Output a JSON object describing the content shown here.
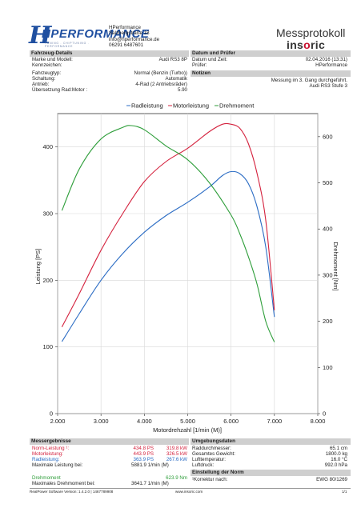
{
  "header": {
    "logo_text": "HPERFORMANCE",
    "logo_tagline": "TUNING . CHIPTUNING . PERFORMANCE",
    "company_lines": [
      "HPerformance",
      "Salzbergstraße 18",
      "info@hperformance.de",
      "06291 6487601"
    ],
    "title": "Messprotokoll",
    "brand": "insoric"
  },
  "vehicle": {
    "heading": "Fahrzeug-Details",
    "rows": [
      {
        "label": "Marke und Modell:",
        "value": "Audi RS3 8P"
      },
      {
        "label": "Kennzeichen:",
        "value": ""
      },
      {
        "label": "Fahrzeugtyp:",
        "value": "Normal (Benzin (Turbo))"
      },
      {
        "label": "Schaltung:",
        "value": "Automatik"
      },
      {
        "label": "Antrieb:",
        "value": "4-Rad (2 Antriebsräder)"
      },
      {
        "label": "Übersetzung Rad:Motor :",
        "value": "5.90"
      }
    ]
  },
  "test": {
    "heading": "Datum und Prüfer",
    "rows": [
      {
        "label": "Datum und Zeit:",
        "value": "02.04.2016 (13:31)"
      },
      {
        "label": "Prüfer:",
        "value": "HPerformance"
      }
    ],
    "notes_heading": "Notizen",
    "notes": [
      "Messung im 3. Gang durchgeführt.",
      "Audi RS3 Stufe 3"
    ]
  },
  "chart_data": {
    "type": "line",
    "title": "",
    "legend": [
      "Radleistung",
      "Motorleistung",
      "Drehmoment"
    ],
    "xlabel": "Motordrehzahl [1/min (M)]",
    "ylabel": "Leistung [PS]",
    "y2label": "Drehmoment [Nm]",
    "xlim": [
      2000,
      8000
    ],
    "ylim": [
      0,
      450
    ],
    "y2lim": [
      0,
      650
    ],
    "xticks": [
      "2.000",
      "3.000",
      "4.000",
      "5.000",
      "6.000",
      "7.000",
      "8.000"
    ],
    "yticks": [
      "0",
      "100",
      "200",
      "300",
      "400"
    ],
    "y2ticks": [
      "0",
      "100",
      "200",
      "300",
      "400",
      "500",
      "600"
    ],
    "series": [
      {
        "name": "Radleistung",
        "axis": "left",
        "color": "#2b6cc4",
        "x": [
          2100,
          2500,
          3000,
          3500,
          4000,
          4500,
          5000,
          5500,
          5800,
          6000,
          6200,
          6400,
          6600,
          6800,
          7000
        ],
        "y": [
          108,
          150,
          200,
          240,
          272,
          297,
          317,
          340,
          357,
          363,
          360,
          345,
          310,
          250,
          145
        ]
      },
      {
        "name": "Motorleistung",
        "axis": "left",
        "color": "#d4213d",
        "x": [
          2100,
          2500,
          3000,
          3500,
          4000,
          4500,
          5000,
          5500,
          5800,
          6000,
          6200,
          6400,
          6600,
          6800,
          7000
        ],
        "y": [
          130,
          180,
          245,
          300,
          348,
          378,
          398,
          423,
          434,
          434,
          428,
          405,
          360,
          290,
          155
        ]
      },
      {
        "name": "Drehmoment",
        "axis": "right",
        "color": "#2e9e3a",
        "x": [
          2100,
          2500,
          3000,
          3500,
          3700,
          4000,
          4500,
          5000,
          5500,
          6000,
          6200,
          6400,
          6600,
          6800,
          7000
        ],
        "y": [
          440,
          530,
          595,
          620,
          624,
          615,
          580,
          550,
          500,
          430,
          390,
          340,
          280,
          200,
          155
        ]
      }
    ]
  },
  "results": {
    "heading": "Messergebnisse",
    "rows": [
      {
        "label": "Norm-Leistung ¹:",
        "ps": "434.8 PS",
        "kw": "319.8 kW",
        "color": "#d4213d"
      },
      {
        "label": "Motorleistung:",
        "ps": "443.9 PS",
        "kw": "326.5 kW",
        "color": "#d4213d"
      },
      {
        "label": "Radleistung:",
        "ps": "363.9 PS",
        "kw": "267.6 kW",
        "color": "#2b6cc4"
      },
      {
        "label": "Maximale Leistung bei:",
        "ps": "5881.9 1/min (M)",
        "kw": "",
        "color": "#222222"
      }
    ],
    "torque_label": "Drehmoment",
    "torque_value": "623.9 Nm",
    "torque_at_label": "Maximales Drehmoment bei:",
    "torque_at_value": "3641.7 1/min (M)"
  },
  "environment": {
    "heading": "Umgebungsdaten",
    "rows": [
      {
        "label": "Raddurchmesser:",
        "value": "65.1 cm"
      },
      {
        "label": "Gesamtes Gewicht:",
        "value": "1800.0 kg"
      },
      {
        "label": "Lufttemperatur:",
        "value": "16.0 °C"
      },
      {
        "label": "Luftdruck:",
        "value": "992.0 hPa"
      }
    ],
    "norm_heading": "Einstellung der Norm",
    "norm_label": "¹Korrektur nach:",
    "norm_value": "EWG 80/1269"
  },
  "footer": {
    "left": "RealPower Software Version: 1.4.2.0 | 1467789908",
    "center": "www.insoric.com",
    "right": "1/1"
  }
}
